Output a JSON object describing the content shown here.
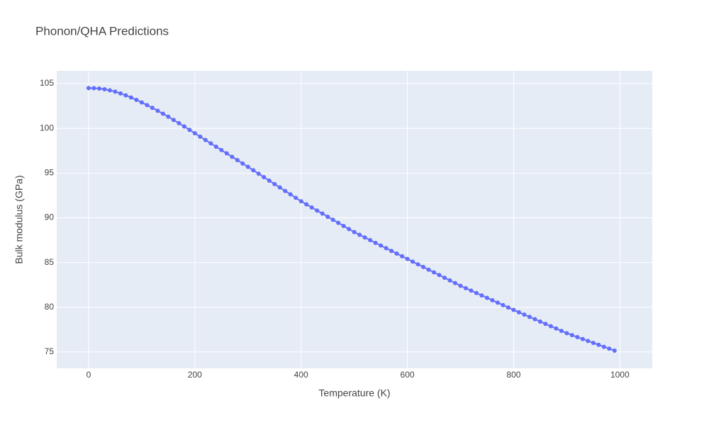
{
  "chart_data": {
    "type": "line",
    "title": "Phonon/QHA Predictions",
    "x_label": "Temperature (K)",
    "y_label": "Bulk modulus (GPa)",
    "xlim": [
      -60,
      1061
    ],
    "ylim": [
      73.17,
      106.43
    ],
    "xticks": [
      0,
      200,
      400,
      600,
      800,
      1000
    ],
    "yticks": [
      75,
      80,
      85,
      90,
      95,
      100,
      105
    ],
    "grid": true,
    "markers": true,
    "x": [
      0,
      10,
      20,
      30,
      40,
      50,
      60,
      70,
      80,
      90,
      100,
      110,
      120,
      130,
      140,
      150,
      160,
      170,
      180,
      190,
      200,
      210,
      220,
      230,
      240,
      250,
      260,
      270,
      280,
      290,
      300,
      310,
      320,
      330,
      340,
      350,
      360,
      370,
      380,
      390,
      400,
      410,
      420,
      430,
      440,
      450,
      460,
      470,
      480,
      490,
      500,
      510,
      520,
      530,
      540,
      550,
      560,
      570,
      580,
      590,
      600,
      610,
      620,
      630,
      640,
      650,
      660,
      670,
      680,
      690,
      700,
      710,
      720,
      730,
      740,
      750,
      760,
      770,
      780,
      790,
      800,
      810,
      820,
      830,
      840,
      850,
      860,
      870,
      880,
      890,
      900,
      910,
      920,
      930,
      940,
      950,
      960,
      970,
      980,
      990
    ],
    "series": [
      {
        "color": "#636efa",
        "values": [
          104.5,
          104.49,
          104.45,
          104.37,
          104.25,
          104.1,
          103.91,
          103.69,
          103.45,
          103.18,
          102.9,
          102.6,
          102.29,
          101.97,
          101.64,
          101.3,
          100.94,
          100.58,
          100.21,
          99.83,
          99.45,
          99.07,
          98.7,
          98.32,
          97.95,
          97.57,
          97.2,
          96.82,
          96.45,
          96.07,
          95.7,
          95.31,
          94.93,
          94.54,
          94.16,
          93.77,
          93.39,
          93.0,
          92.62,
          92.23,
          91.85,
          91.5,
          91.16,
          90.81,
          90.47,
          90.12,
          89.78,
          89.43,
          89.09,
          88.74,
          88.4,
          88.1,
          87.8,
          87.5,
          87.2,
          86.9,
          86.6,
          86.3,
          86.0,
          85.7,
          85.4,
          85.1,
          84.8,
          84.5,
          84.2,
          83.9,
          83.6,
          83.3,
          83.0,
          82.7,
          82.4,
          82.13,
          81.86,
          81.59,
          81.32,
          81.05,
          80.78,
          80.51,
          80.24,
          79.97,
          79.7,
          79.44,
          79.18,
          78.92,
          78.66,
          78.4,
          78.14,
          77.88,
          77.62,
          77.36,
          77.1,
          76.88,
          76.66,
          76.45,
          76.23,
          76.01,
          75.8,
          75.58,
          75.37,
          75.15
        ]
      }
    ]
  }
}
